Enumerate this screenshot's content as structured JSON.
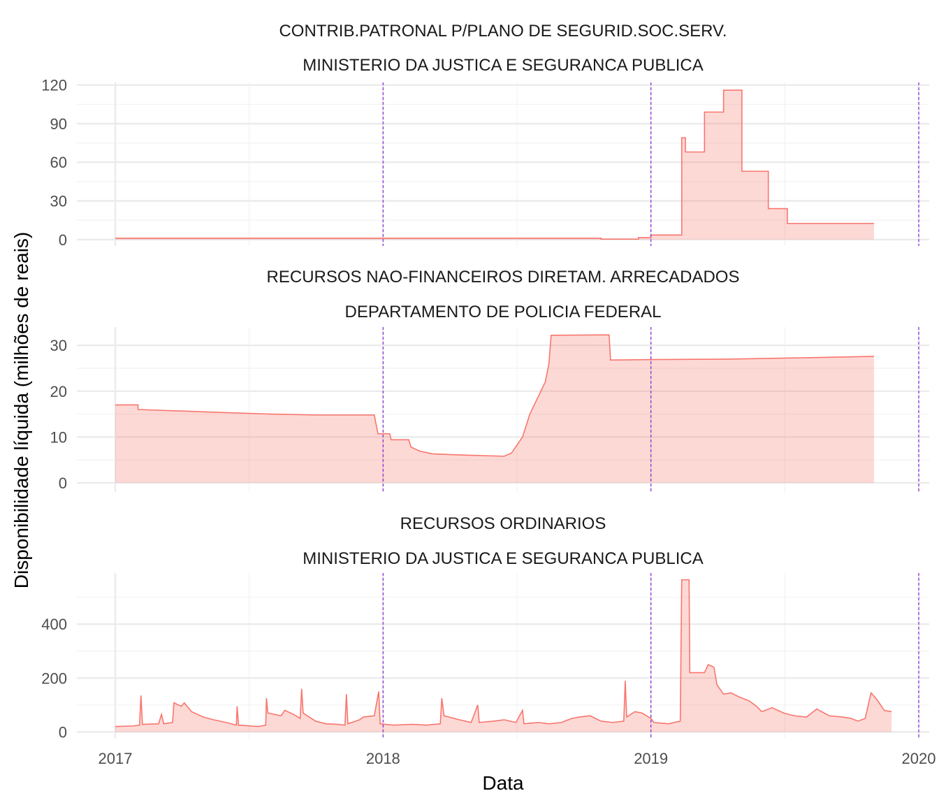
{
  "chart_data": {
    "type": "area",
    "xlabel": "Data",
    "ylabel": "Disponibilidade líquida (milhões de reais)",
    "x_ticks": [
      "2017",
      "2018",
      "2019",
      "2020"
    ],
    "x_range": [
      "2017-01-01",
      "2020-01-01"
    ],
    "reference_lines": [
      "2018-01-01",
      "2019-01-01",
      "2020-01-01"
    ],
    "colors": {
      "series": "#f8766d",
      "reference_line": "#8a2be2"
    },
    "grid": true,
    "legend": "none",
    "panels": [
      {
        "title_line1": "CONTRIB.PATRONAL P/PLANO DE SEGURID.SOC.SERV.",
        "title_line2": "MINISTERIO DA JUSTICA E SEGURANCA PUBLICA",
        "ylim": [
          -5,
          122
        ],
        "y_ticks": [
          0,
          30,
          60,
          90,
          120
        ],
        "y_minor": [
          15,
          45,
          75,
          105
        ],
        "points": [
          [
            "2017-01-01",
            1
          ],
          [
            "2018-10-25",
            1
          ],
          [
            "2018-10-25",
            0.3
          ],
          [
            "2018-12-15",
            0.3
          ],
          [
            "2018-12-15",
            1.5
          ],
          [
            "2019-01-01",
            1.5
          ],
          [
            "2019-01-01",
            3.5
          ],
          [
            "2019-02-12",
            3.5
          ],
          [
            "2019-02-12",
            79
          ],
          [
            "2019-02-17",
            79
          ],
          [
            "2019-02-17",
            68
          ],
          [
            "2019-03-15",
            68
          ],
          [
            "2019-03-15",
            99
          ],
          [
            "2019-04-10",
            99
          ],
          [
            "2019-04-10",
            116
          ],
          [
            "2019-05-05",
            116
          ],
          [
            "2019-05-05",
            53
          ],
          [
            "2019-06-10",
            53
          ],
          [
            "2019-06-10",
            24
          ],
          [
            "2019-07-06",
            24
          ],
          [
            "2019-07-06",
            12.5
          ],
          [
            "2019-11-01",
            12.5
          ]
        ]
      },
      {
        "title_line1": "RECURSOS NAO-FINANCEIROS DIRETAM. ARRECADADOS",
        "title_line2": "DEPARTAMENTO DE POLICIA FEDERAL",
        "ylim": [
          -2,
          34
        ],
        "y_ticks": [
          0,
          10,
          20,
          30
        ],
        "y_minor": [
          5,
          15,
          25
        ],
        "points": [
          [
            "2017-01-01",
            17
          ],
          [
            "2017-02-01",
            17
          ],
          [
            "2017-02-01",
            16
          ],
          [
            "2017-05-01",
            15.5
          ],
          [
            "2017-08-01",
            15
          ],
          [
            "2017-10-01",
            14.8
          ],
          [
            "2017-12-20",
            14.8
          ],
          [
            "2017-12-25",
            10.7
          ],
          [
            "2018-01-10",
            10.7
          ],
          [
            "2018-01-12",
            9.4
          ],
          [
            "2018-02-05",
            9.4
          ],
          [
            "2018-02-08",
            7.8
          ],
          [
            "2018-02-20",
            6.9
          ],
          [
            "2018-03-10",
            6.3
          ],
          [
            "2018-05-01",
            6.0
          ],
          [
            "2018-06-15",
            5.8
          ],
          [
            "2018-06-25",
            6.5
          ],
          [
            "2018-07-10",
            10.0
          ],
          [
            "2018-07-20",
            15.0
          ],
          [
            "2018-08-01",
            19.0
          ],
          [
            "2018-08-10",
            22.0
          ],
          [
            "2018-08-15",
            26.0
          ],
          [
            "2018-08-18",
            32.2
          ],
          [
            "2018-11-05",
            32.3
          ],
          [
            "2018-11-07",
            26.8
          ],
          [
            "2019-01-01",
            26.9
          ],
          [
            "2019-04-15",
            27.0
          ],
          [
            "2019-08-01",
            27.3
          ],
          [
            "2019-11-01",
            27.6
          ]
        ]
      },
      {
        "title_line1": "RECURSOS ORDINARIOS",
        "title_line2": "MINISTERIO DA JUSTICA E SEGURANCA PUBLICA",
        "ylim": [
          -25,
          590
        ],
        "y_ticks": [
          0,
          200,
          400
        ],
        "y_minor": [
          100,
          300,
          500
        ],
        "points": [
          [
            "2017-01-01",
            20
          ],
          [
            "2017-01-25",
            22
          ],
          [
            "2017-02-03",
            25
          ],
          [
            "2017-02-05",
            135
          ],
          [
            "2017-02-07",
            28
          ],
          [
            "2017-03-01",
            30
          ],
          [
            "2017-03-05",
            65
          ],
          [
            "2017-03-08",
            30
          ],
          [
            "2017-03-20",
            35
          ],
          [
            "2017-03-22",
            108
          ],
          [
            "2017-04-01",
            95
          ],
          [
            "2017-04-05",
            108
          ],
          [
            "2017-04-15",
            75
          ],
          [
            "2017-05-01",
            55
          ],
          [
            "2017-05-15",
            45
          ],
          [
            "2017-06-01",
            35
          ],
          [
            "2017-06-15",
            25
          ],
          [
            "2017-06-16",
            95
          ],
          [
            "2017-06-18",
            25
          ],
          [
            "2017-07-15",
            20
          ],
          [
            "2017-07-25",
            25
          ],
          [
            "2017-07-26",
            125
          ],
          [
            "2017-07-28",
            70
          ],
          [
            "2017-08-15",
            60
          ],
          [
            "2017-08-20",
            80
          ],
          [
            "2017-09-01",
            65
          ],
          [
            "2017-09-10",
            50
          ],
          [
            "2017-09-12",
            160
          ],
          [
            "2017-09-14",
            70
          ],
          [
            "2017-10-01",
            40
          ],
          [
            "2017-10-15",
            30
          ],
          [
            "2017-11-01",
            28
          ],
          [
            "2017-11-10",
            25
          ],
          [
            "2017-11-12",
            140
          ],
          [
            "2017-11-14",
            30
          ],
          [
            "2017-11-30",
            45
          ],
          [
            "2017-12-05",
            55
          ],
          [
            "2017-12-20",
            60
          ],
          [
            "2017-12-26",
            150
          ],
          [
            "2017-12-28",
            30
          ],
          [
            "2018-01-15",
            25
          ],
          [
            "2018-02-10",
            28
          ],
          [
            "2018-03-01",
            25
          ],
          [
            "2018-03-20",
            30
          ],
          [
            "2018-03-22",
            125
          ],
          [
            "2018-03-25",
            60
          ],
          [
            "2018-04-15",
            45
          ],
          [
            "2018-05-01",
            35
          ],
          [
            "2018-05-10",
            100
          ],
          [
            "2018-05-12",
            35
          ],
          [
            "2018-06-01",
            40
          ],
          [
            "2018-06-15",
            45
          ],
          [
            "2018-07-01",
            35
          ],
          [
            "2018-07-10",
            80
          ],
          [
            "2018-07-12",
            30
          ],
          [
            "2018-08-01",
            35
          ],
          [
            "2018-08-15",
            30
          ],
          [
            "2018-09-01",
            35
          ],
          [
            "2018-09-15",
            50
          ],
          [
            "2018-09-25",
            55
          ],
          [
            "2018-10-10",
            60
          ],
          [
            "2018-10-25",
            40
          ],
          [
            "2018-11-10",
            35
          ],
          [
            "2018-11-25",
            40
          ],
          [
            "2018-11-27",
            190
          ],
          [
            "2018-11-29",
            55
          ],
          [
            "2018-12-10",
            75
          ],
          [
            "2018-12-20",
            70
          ],
          [
            "2019-01-01",
            50
          ],
          [
            "2019-01-05",
            35
          ],
          [
            "2019-01-25",
            30
          ],
          [
            "2019-02-10",
            40
          ],
          [
            "2019-02-12",
            565
          ],
          [
            "2019-02-22",
            565
          ],
          [
            "2019-02-23",
            220
          ],
          [
            "2019-03-15",
            220
          ],
          [
            "2019-03-20",
            250
          ],
          [
            "2019-03-28",
            240
          ],
          [
            "2019-04-01",
            175
          ],
          [
            "2019-04-10",
            140
          ],
          [
            "2019-04-20",
            145
          ],
          [
            "2019-05-01",
            130
          ],
          [
            "2019-05-15",
            115
          ],
          [
            "2019-05-25",
            95
          ],
          [
            "2019-06-01",
            75
          ],
          [
            "2019-06-15",
            90
          ],
          [
            "2019-07-01",
            70
          ],
          [
            "2019-07-15",
            60
          ],
          [
            "2019-08-01",
            55
          ],
          [
            "2019-08-15",
            85
          ],
          [
            "2019-09-01",
            60
          ],
          [
            "2019-09-20",
            55
          ],
          [
            "2019-10-01",
            50
          ],
          [
            "2019-10-10",
            40
          ],
          [
            "2019-10-20",
            50
          ],
          [
            "2019-10-28",
            145
          ],
          [
            "2019-11-05",
            120
          ],
          [
            "2019-11-15",
            80
          ],
          [
            "2019-11-25",
            75
          ]
        ]
      }
    ]
  }
}
